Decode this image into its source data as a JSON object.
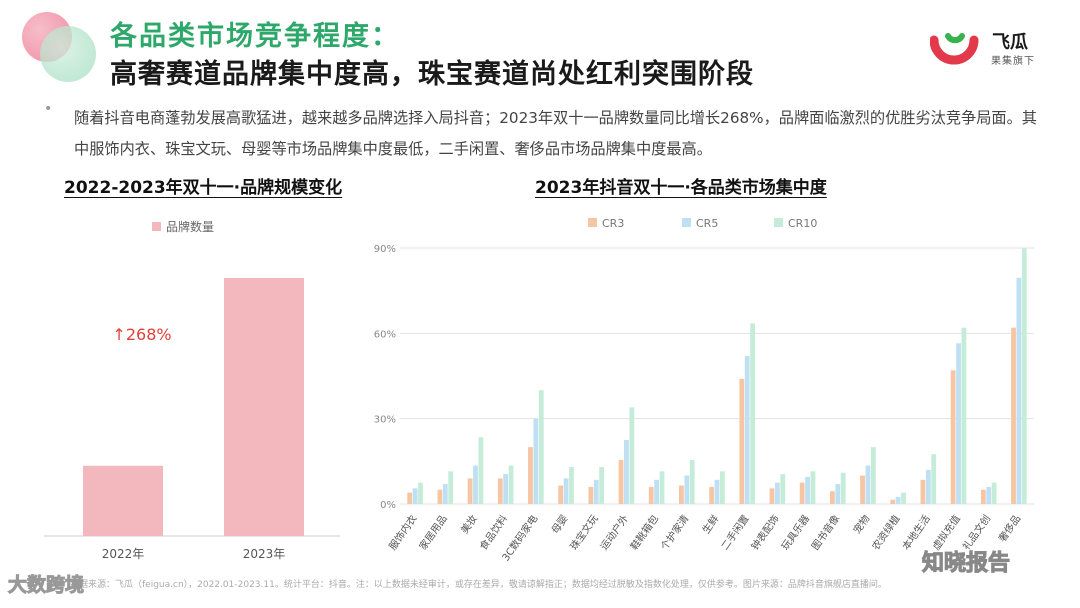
{
  "title_line1": "各品类市场竞争程度：",
  "title_line2": "高奢赛道品牌集中度高，珠宝赛道尚处红利突围阶段",
  "logo": {
    "name": "飞瓜",
    "sub": "果集旗下"
  },
  "bullet": "•",
  "intro": "随着抖音电商蓬勃发展高歌猛进，越来越多品牌选择入局抖音；2023年双十一品牌数量同比增长268%，品牌面临激烈的优胜劣汰竞争局面。其中服饰内衣、珠宝文玩、母婴等市场品牌集中度最低，二手闲置、奢侈品市场品牌集中度最高。",
  "left_title": "2022-2023年双十一·品牌规模变化",
  "right_title": "2023年抖音双十一·各品类市场集中度",
  "footnote": "数据来源：飞瓜（feigua.cn），2022.01-2023.11。统计平台：抖音。注：以上数据未经审计，或存在差异，敬请谅解指正；数据均经过脱敏及指数化处理，仅供参考。图片来源：品牌抖音旗舰店直播间。",
  "watermark_left": "大数跨境",
  "watermark_right": "知晓报告",
  "chart_data": [
    {
      "type": "bar",
      "title": "2022-2023年双十一·品牌规模变化",
      "categories": [
        "2022年",
        "2023年"
      ],
      "series": [
        {
          "name": "品牌数量",
          "values": [
            27.2,
            100
          ],
          "color": "#f2b8be"
        }
      ],
      "annotation": "↑268%",
      "annotation_color": "#e0403a",
      "ylim": [
        0,
        100
      ]
    },
    {
      "type": "bar",
      "title": "2023年抖音双十一·各品类市场集中度",
      "categories": [
        "服饰内衣",
        "家居用品",
        "美妆",
        "食品饮料",
        "3C数码家电",
        "母婴",
        "珠宝文玩",
        "运动户外",
        "鞋靴箱包",
        "个护家清",
        "生鲜",
        "二手闲置",
        "钟表配饰",
        "玩具乐器",
        "图书音像",
        "宠物",
        "农资绿植",
        "本地生活",
        "虚拟充值",
        "礼品文创",
        "奢侈品"
      ],
      "yticks": [
        "0%",
        "30%",
        "60%",
        "90%"
      ],
      "ylim": [
        0,
        90
      ],
      "grid": true,
      "legend_position": "top",
      "series": [
        {
          "name": "CR3",
          "color": "#f6c6a4",
          "values": [
            4,
            5,
            9,
            9,
            20,
            6.5,
            6,
            15.5,
            6,
            6.5,
            6,
            44,
            5.5,
            7.5,
            4.5,
            10,
            1.5,
            8.5,
            47,
            5,
            62
          ]
        },
        {
          "name": "CR5",
          "color": "#bfe0f2",
          "values": [
            5.5,
            7,
            13.5,
            10.5,
            30,
            9,
            8.5,
            22.5,
            8.5,
            10,
            8.5,
            52,
            7.5,
            9.5,
            7,
            13.5,
            2.5,
            12,
            56.5,
            6,
            79.5
          ]
        },
        {
          "name": "CR10",
          "color": "#c5ecd9",
          "values": [
            7.5,
            11.5,
            23.5,
            13.5,
            40,
            13,
            13,
            34,
            11.5,
            15.5,
            11.5,
            63.5,
            10.5,
            11.5,
            11,
            20,
            4,
            17.5,
            62,
            7.5,
            90
          ]
        }
      ]
    }
  ]
}
